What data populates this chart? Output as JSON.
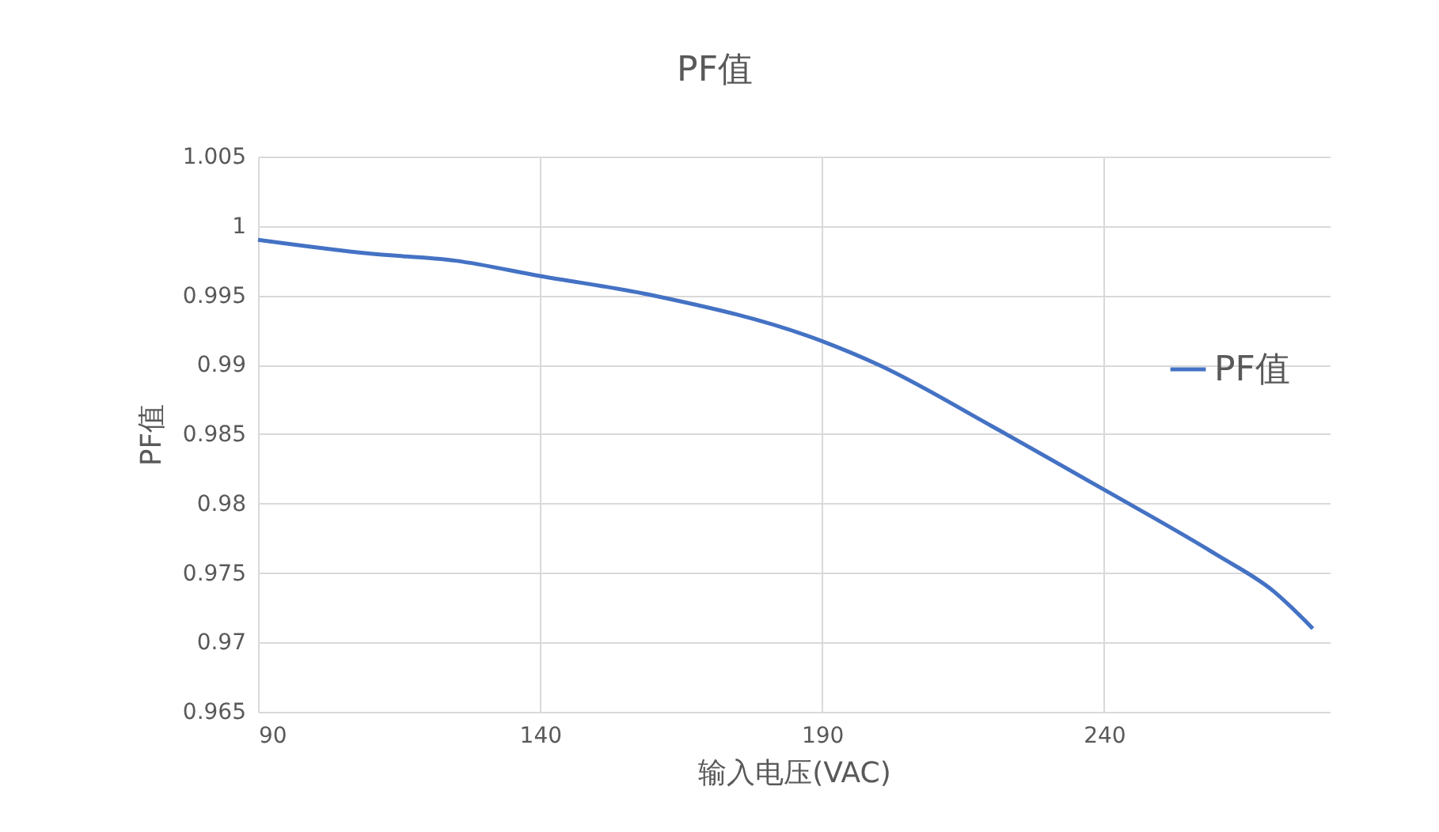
{
  "chart_data": {
    "type": "line",
    "title": "PF值",
    "xlabel": "输入电压(VAC)",
    "ylabel": "PF值",
    "x": [
      90,
      110,
      125,
      140,
      160,
      190,
      200,
      220,
      240,
      260,
      270,
      277
    ],
    "series": [
      {
        "name": "PF值",
        "color": "#4472c4",
        "values": [
          0.999,
          0.998,
          0.9975,
          0.9964,
          0.995,
          0.9917,
          0.99,
          0.9856,
          0.981,
          0.9763,
          0.9737,
          0.971
        ]
      }
    ],
    "xlim": [
      90,
      280
    ],
    "xticks": [
      90,
      140,
      190,
      240
    ],
    "ylim": [
      0.965,
      1.005
    ],
    "yticks": [
      0.965,
      0.97,
      0.975,
      0.98,
      0.985,
      0.99,
      0.995,
      1,
      1.005
    ],
    "grid": true,
    "legend": "right",
    "marker": "none",
    "line_style": "solid"
  }
}
